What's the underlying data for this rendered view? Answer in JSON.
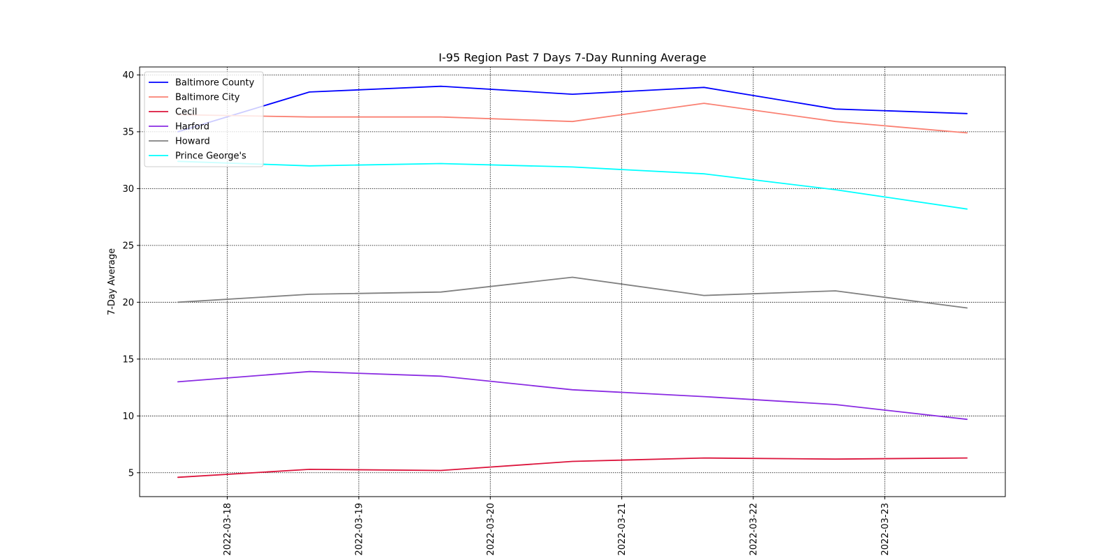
{
  "chart_data": {
    "type": "line",
    "title": "I-95 Region Past 7 Days 7-Day Running Average",
    "xlabel": "",
    "ylabel": "7-Day Average",
    "x": [
      "2022-03-17 15:00",
      "2022-03-18 15:00",
      "2022-03-19 15:00",
      "2022-03-20 15:00",
      "2022-03-21 15:00",
      "2022-03-22 15:00",
      "2022-03-23 15:00"
    ],
    "xlim": [
      "2022-03-17 08:00",
      "2022-03-23 22:00"
    ],
    "xticks": [
      "2022-03-18",
      "2022-03-19",
      "2022-03-20",
      "2022-03-21",
      "2022-03-22",
      "2022-03-23"
    ],
    "ylim": [
      2.9,
      40.7
    ],
    "yticks": [
      5,
      10,
      15,
      20,
      25,
      30,
      35,
      40
    ],
    "grid": true,
    "legend_position": "top-left",
    "series": [
      {
        "name": "Baltimore County",
        "color": "#0000ff",
        "values": [
          35.0,
          38.5,
          39.0,
          38.3,
          38.9,
          37.0,
          36.6
        ]
      },
      {
        "name": "Baltimore City",
        "color": "#fa8072",
        "values": [
          36.5,
          36.3,
          36.3,
          35.9,
          37.5,
          35.9,
          34.9
        ]
      },
      {
        "name": "Cecil",
        "color": "#dc143c",
        "values": [
          4.6,
          5.3,
          5.2,
          6.0,
          6.3,
          6.2,
          6.3
        ]
      },
      {
        "name": "Harford",
        "color": "#8a2be2",
        "values": [
          13.0,
          13.9,
          13.5,
          12.3,
          11.7,
          11.0,
          9.7
        ]
      },
      {
        "name": "Howard",
        "color": "#808080",
        "values": [
          20.0,
          20.7,
          20.9,
          22.2,
          20.6,
          21.0,
          19.5
        ]
      },
      {
        "name": "Prince George's",
        "color": "#00ffff",
        "values": [
          32.4,
          32.0,
          32.2,
          31.9,
          31.3,
          29.9,
          28.2
        ]
      }
    ]
  }
}
